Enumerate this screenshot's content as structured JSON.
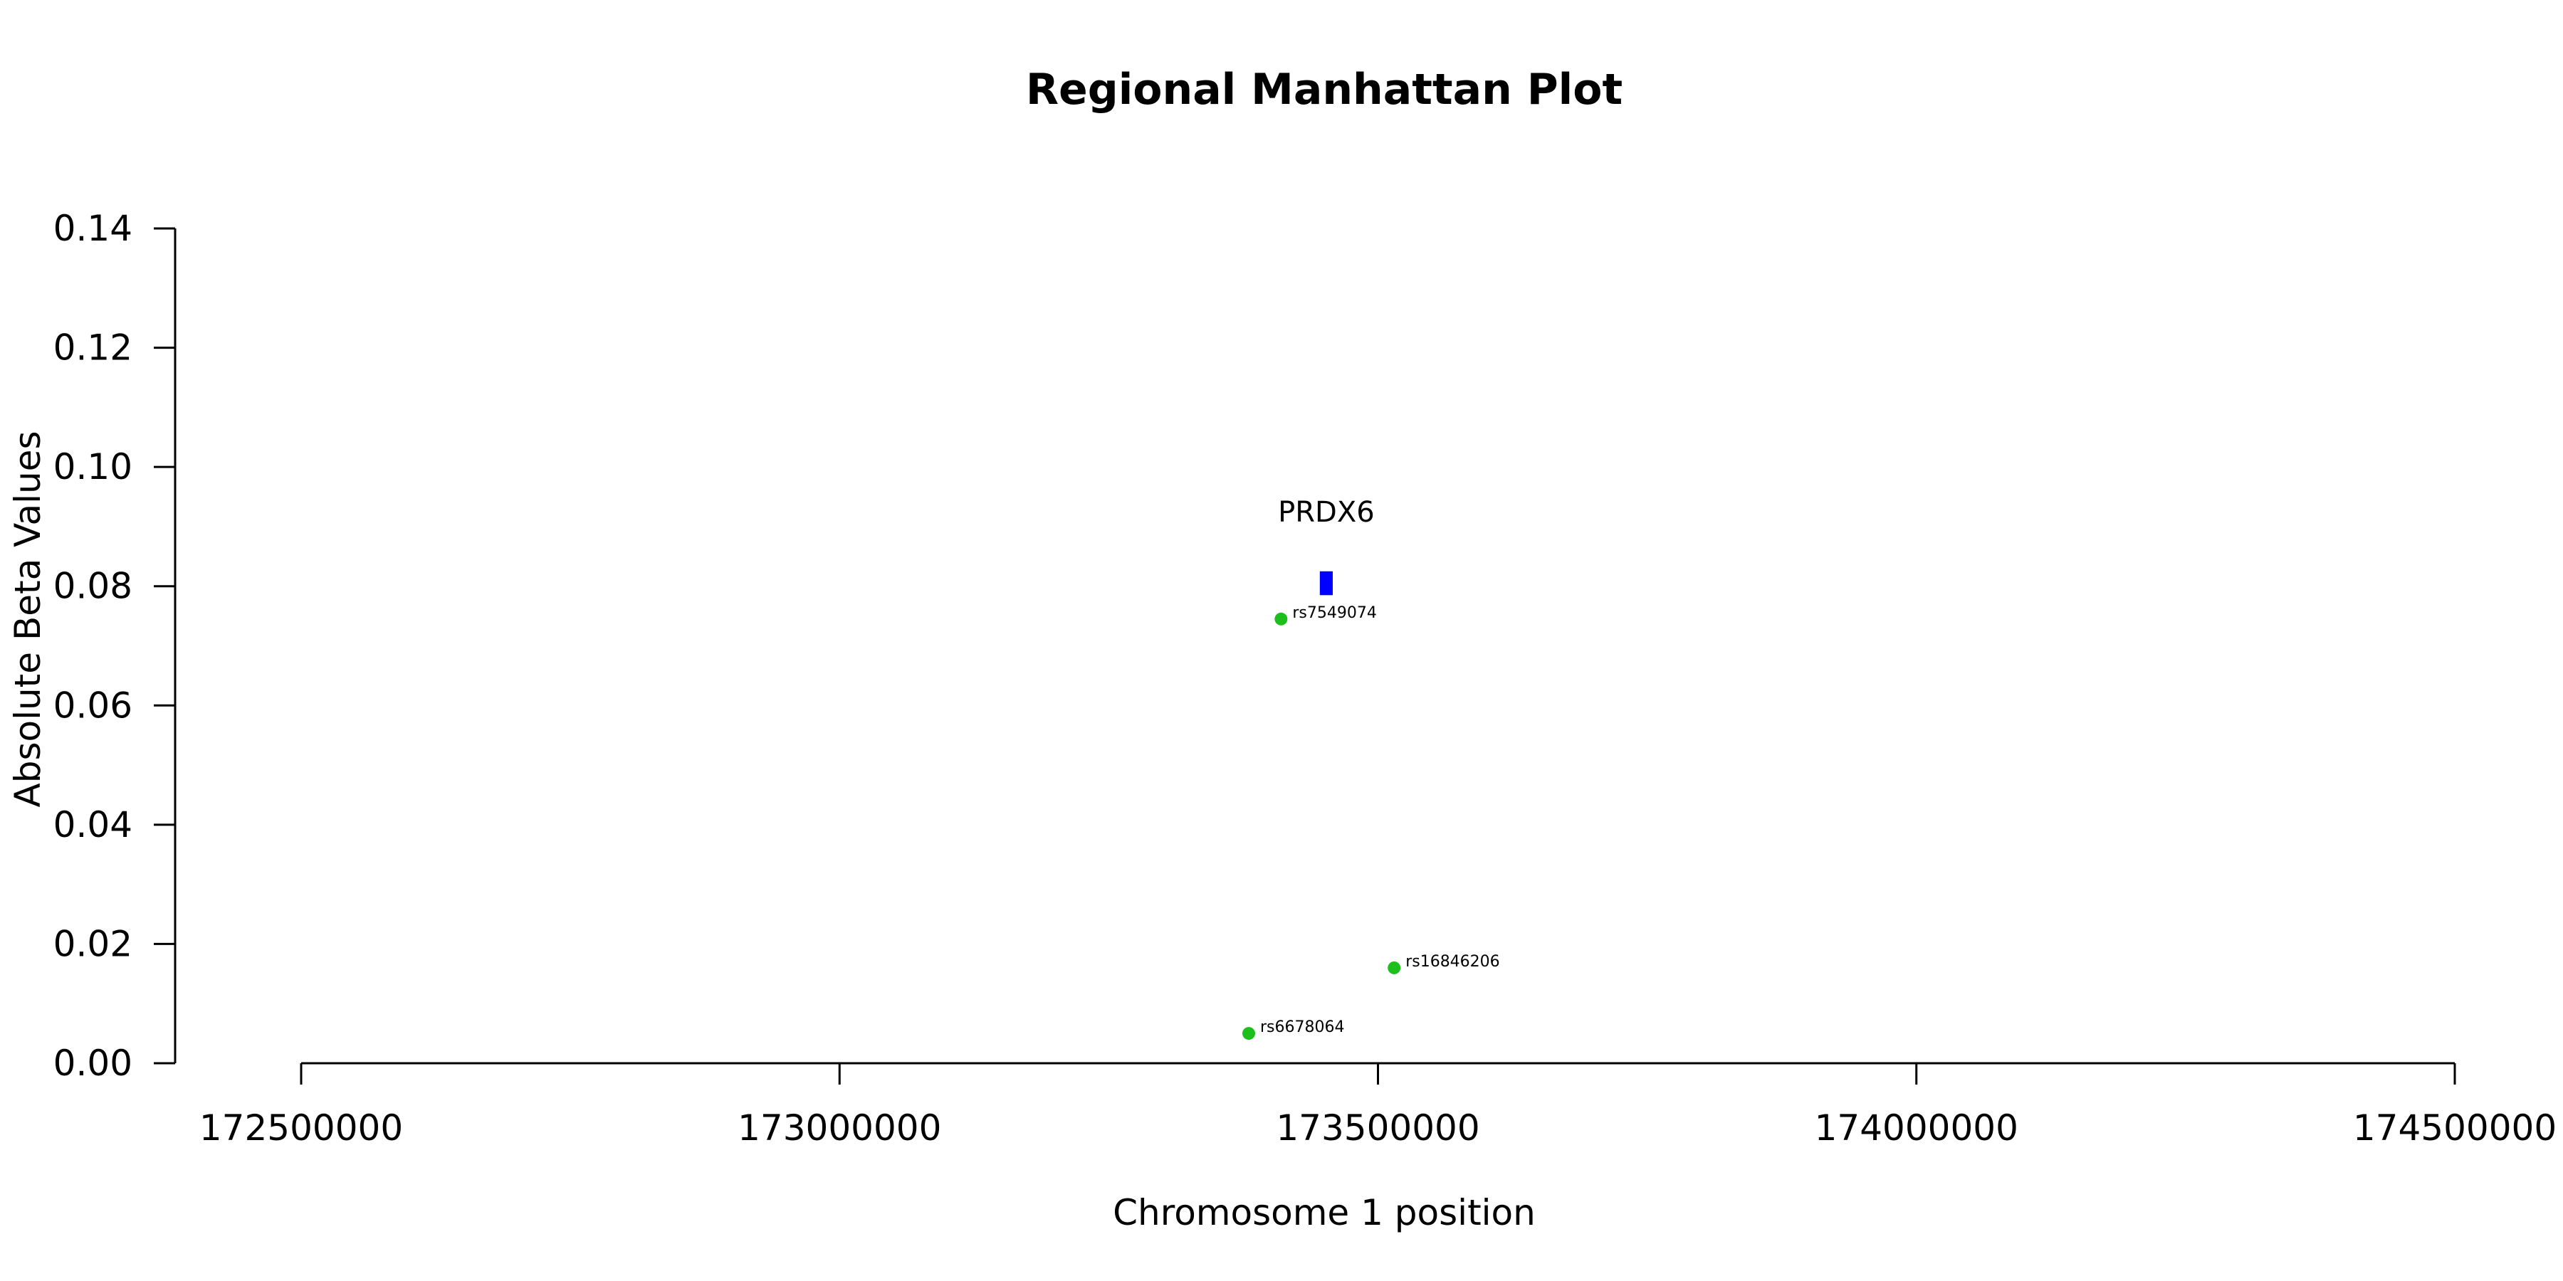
{
  "chart_data": {
    "type": "scatter",
    "title": "Regional Manhattan Plot",
    "xlabel": "Chromosome 1 position",
    "ylabel": "Absolute Beta Values",
    "xlim": [
      172500000,
      174500000
    ],
    "ylim": [
      0,
      0.14
    ],
    "xticks": [
      172500000,
      173000000,
      173500000,
      174000000,
      174500000
    ],
    "xtick_labels": [
      "172500000",
      "173000000",
      "173500000",
      "174000000",
      "174500000"
    ],
    "yticks": [
      0,
      0.02,
      0.04,
      0.06,
      0.08,
      0.1,
      0.12,
      0.14
    ],
    "ytick_labels": [
      "0.00",
      "0.02",
      "0.04",
      "0.06",
      "0.08",
      "0.10",
      "0.12",
      "0.14"
    ],
    "grid": false,
    "series": [
      {
        "marker": "circle",
        "color": "#1cbf1c",
        "points": [
          {
            "label": "rs7549074",
            "x": 173410000,
            "y": 0.0745
          },
          {
            "label": "rs16846206",
            "x": 173515000,
            "y": 0.016
          },
          {
            "label": "rs6678064",
            "x": 173380000,
            "y": 0.005
          }
        ]
      }
    ],
    "gene": {
      "name": "PRDX6",
      "color": "#0000ff",
      "start": 173446000,
      "end": 173458000,
      "y_low": 0.0785,
      "y_high": 0.0825
    }
  }
}
